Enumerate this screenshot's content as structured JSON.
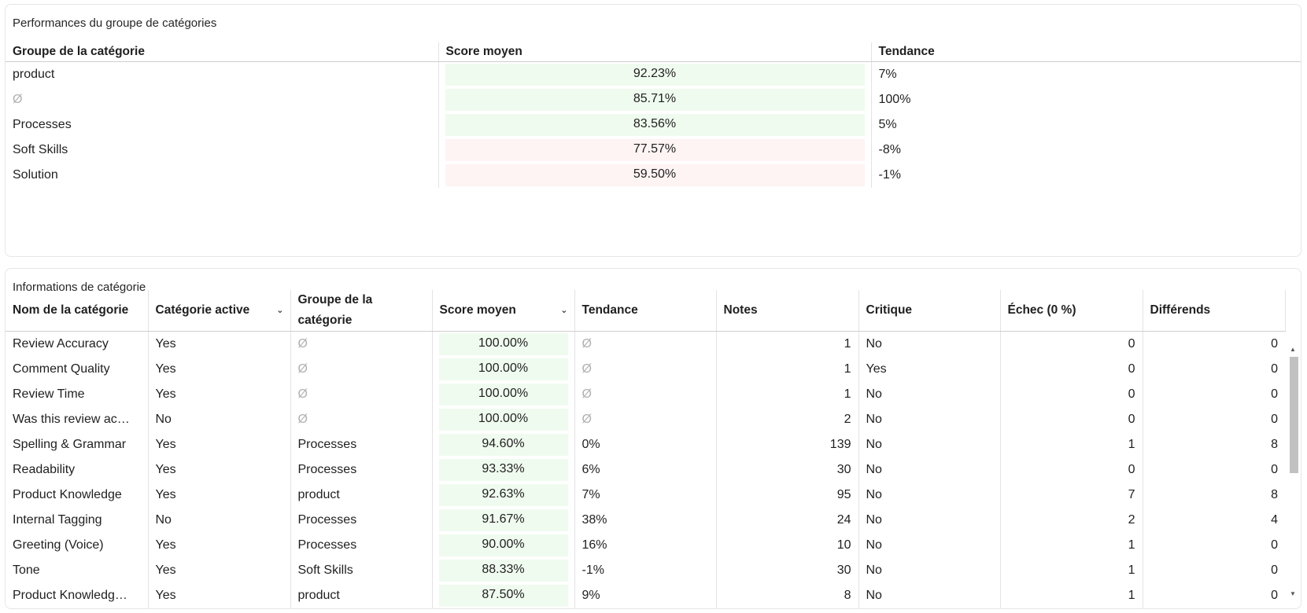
{
  "group_panel": {
    "title": "Performances du groupe de catégories",
    "headers": {
      "group": "Groupe de la catégorie",
      "score": "Score moyen",
      "trend": "Tendance"
    },
    "rows": [
      {
        "group": "product",
        "score": "92.23%",
        "trend": "7%",
        "status": "good"
      },
      {
        "group": "Ø",
        "score": "85.71%",
        "trend": "100%",
        "status": "good"
      },
      {
        "group": "Processes",
        "score": "83.56%",
        "trend": "5%",
        "status": "good"
      },
      {
        "group": "Soft Skills",
        "score": "77.57%",
        "trend": "-8%",
        "status": "bad"
      },
      {
        "group": "Solution",
        "score": "59.50%",
        "trend": "-1%",
        "status": "bad"
      }
    ]
  },
  "category_panel": {
    "title": "Informations de catégorie",
    "headers": {
      "name": "Nom de la catégorie",
      "active": "Catégorie active",
      "group": "Groupe de la catégorie",
      "score": "Score moyen",
      "trend": "Tendance",
      "notes": "Notes",
      "critical": "Critique",
      "fail": "Échec (0 %)",
      "disputes": "Différends"
    },
    "rows": [
      {
        "name": "Review Accuracy",
        "active": "Yes",
        "group": "Ø",
        "score": "100.00%",
        "trend": "Ø",
        "notes": "1",
        "critical": "No",
        "fail": "0",
        "disputes": "0"
      },
      {
        "name": "Comment Quality",
        "active": "Yes",
        "group": "Ø",
        "score": "100.00%",
        "trend": "Ø",
        "notes": "1",
        "critical": "Yes",
        "fail": "0",
        "disputes": "0"
      },
      {
        "name": "Review Time",
        "active": "Yes",
        "group": "Ø",
        "score": "100.00%",
        "trend": "Ø",
        "notes": "1",
        "critical": "No",
        "fail": "0",
        "disputes": "0"
      },
      {
        "name": "Was this review ac…",
        "active": "No",
        "group": "Ø",
        "score": "100.00%",
        "trend": "Ø",
        "notes": "2",
        "critical": "No",
        "fail": "0",
        "disputes": "0"
      },
      {
        "name": "Spelling & Grammar",
        "active": "Yes",
        "group": "Processes",
        "score": "94.60%",
        "trend": "0%",
        "notes": "139",
        "critical": "No",
        "fail": "1",
        "disputes": "8"
      },
      {
        "name": "Readability",
        "active": "Yes",
        "group": "Processes",
        "score": "93.33%",
        "trend": "6%",
        "notes": "30",
        "critical": "No",
        "fail": "0",
        "disputes": "0"
      },
      {
        "name": "Product Knowledge",
        "active": "Yes",
        "group": "product",
        "score": "92.63%",
        "trend": "7%",
        "notes": "95",
        "critical": "No",
        "fail": "7",
        "disputes": "8"
      },
      {
        "name": "Internal Tagging",
        "active": "No",
        "group": "Processes",
        "score": "91.67%",
        "trend": "38%",
        "notes": "24",
        "critical": "No",
        "fail": "2",
        "disputes": "4"
      },
      {
        "name": "Greeting (Voice)",
        "active": "Yes",
        "group": "Processes",
        "score": "90.00%",
        "trend": "16%",
        "notes": "10",
        "critical": "No",
        "fail": "1",
        "disputes": "0"
      },
      {
        "name": "Tone",
        "active": "Yes",
        "group": "Soft Skills",
        "score": "88.33%",
        "trend": "-1%",
        "notes": "30",
        "critical": "No",
        "fail": "1",
        "disputes": "0"
      },
      {
        "name": "Product Knowledg…",
        "active": "Yes",
        "group": "product",
        "score": "87.50%",
        "trend": "9%",
        "notes": "8",
        "critical": "No",
        "fail": "1",
        "disputes": "0"
      }
    ]
  },
  "icons": {
    "sort": "chevron-down-icon",
    "scroll_up": "triangle-up-icon",
    "scroll_down": "triangle-down-icon"
  },
  "colors": {
    "good_bg": "#f0fbef",
    "bad_bg": "#fdf4f3",
    "null_text": "#b0b0b0"
  }
}
